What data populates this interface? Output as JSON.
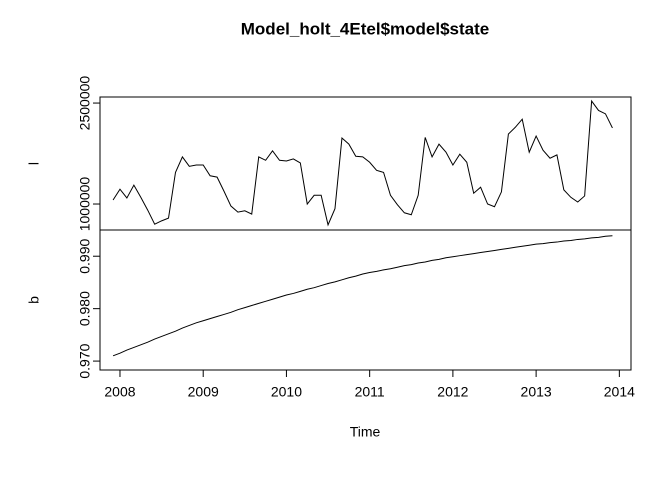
{
  "chart_data": {
    "type": "line",
    "title": "Model_holt_4Etel$model$state",
    "xlabel": "Time",
    "x": [
      2007.917,
      2008,
      2008.083,
      2008.167,
      2008.25,
      2008.333,
      2008.417,
      2008.5,
      2008.583,
      2008.667,
      2008.75,
      2008.833,
      2008.917,
      2009,
      2009.083,
      2009.167,
      2009.25,
      2009.333,
      2009.417,
      2009.5,
      2009.583,
      2009.667,
      2009.75,
      2009.833,
      2009.917,
      2010,
      2010.083,
      2010.167,
      2010.25,
      2010.333,
      2010.417,
      2010.5,
      2010.583,
      2010.667,
      2010.75,
      2010.833,
      2010.917,
      2011,
      2011.083,
      2011.167,
      2011.25,
      2011.333,
      2011.417,
      2011.5,
      2011.583,
      2011.667,
      2011.75,
      2011.833,
      2011.917,
      2012,
      2012.083,
      2012.167,
      2012.25,
      2012.333,
      2012.417,
      2012.5,
      2012.583,
      2012.667,
      2012.75,
      2012.833,
      2012.917,
      2013,
      2013.083,
      2013.167,
      2013.25,
      2013.333,
      2013.417,
      2013.5,
      2013.583,
      2013.667,
      2013.75,
      2013.833,
      2013.917
    ],
    "xlim": [
      2007.76,
      2014.14
    ],
    "xticks": [
      2008,
      2009,
      2010,
      2011,
      2012,
      2013,
      2014
    ],
    "panels": [
      {
        "ylabel": "l",
        "color": "#000000",
        "ylim": [
          614000,
          2590000
        ],
        "yticks": [
          1000000,
          2500000
        ],
        "values": [
          1060000,
          1220000,
          1090000,
          1280000,
          1100000,
          910000,
          700000,
          750000,
          790000,
          1470000,
          1700000,
          1560000,
          1580000,
          1580000,
          1420000,
          1400000,
          1190000,
          970000,
          880000,
          900000,
          850000,
          1700000,
          1650000,
          1790000,
          1650000,
          1640000,
          1670000,
          1610000,
          1000000,
          1130000,
          1130000,
          690000,
          930000,
          1980000,
          1890000,
          1710000,
          1700000,
          1620000,
          1500000,
          1470000,
          1130000,
          990000,
          870000,
          840000,
          1130000,
          1990000,
          1700000,
          1890000,
          1770000,
          1580000,
          1740000,
          1620000,
          1160000,
          1250000,
          1000000,
          960000,
          1180000,
          2040000,
          2140000,
          2260000,
          1770000,
          2010000,
          1800000,
          1680000,
          1730000,
          1210000,
          1100000,
          1030000,
          1120000,
          2530000,
          2390000,
          2340000,
          2130000
        ]
      },
      {
        "ylabel": "b",
        "color": "#000000",
        "ylim": [
          0.9683,
          0.995
        ],
        "yticks": [
          {
            "value": 0.97,
            "label": "0.970"
          },
          {
            "value": 0.98,
            "label": "0.980"
          },
          {
            "value": 0.99,
            "label": "0.990"
          }
        ],
        "values": [
          0.971,
          0.9715,
          0.9721,
          0.9726,
          0.9731,
          0.9736,
          0.9742,
          0.9747,
          0.9752,
          0.9757,
          0.9763,
          0.9768,
          0.9773,
          0.9777,
          0.9781,
          0.9785,
          0.9789,
          0.9793,
          0.9798,
          0.9802,
          0.9806,
          0.981,
          0.9814,
          0.9818,
          0.9822,
          0.9826,
          0.9829,
          0.9833,
          0.9837,
          0.984,
          0.9844,
          0.9848,
          0.9851,
          0.9855,
          0.9859,
          0.9862,
          0.9866,
          0.9869,
          0.9871,
          0.9874,
          0.9876,
          0.9879,
          0.9882,
          0.9884,
          0.9887,
          0.9889,
          0.9892,
          0.9894,
          0.9897,
          0.9899,
          0.9901,
          0.9903,
          0.9905,
          0.9907,
          0.9909,
          0.9911,
          0.9913,
          0.9915,
          0.9917,
          0.9919,
          0.9921,
          0.9923,
          0.9924,
          0.9926,
          0.9927,
          0.9929,
          0.993,
          0.9932,
          0.9933,
          0.9935,
          0.9936,
          0.9938,
          0.9939
        ]
      }
    ]
  }
}
